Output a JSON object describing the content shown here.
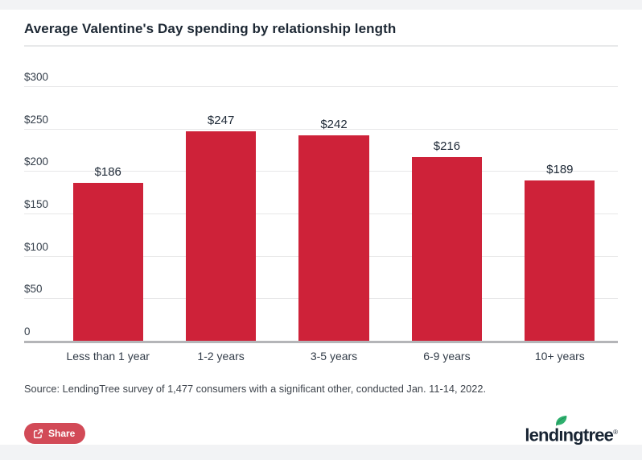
{
  "page": {
    "title": "Average Valentine's Day spending by relationship length"
  },
  "chart_data": {
    "type": "bar",
    "title": "Average Valentine's Day spending by relationship length",
    "categories": [
      "Less than 1 year",
      "1-2 years",
      "3-5 years",
      "6-9 years",
      "10+ years"
    ],
    "values": [
      186,
      247,
      242,
      216,
      189
    ],
    "value_labels": [
      "$186",
      "$247",
      "$242",
      "$216",
      "$189"
    ],
    "xlabel": "",
    "ylabel": "",
    "ylim": [
      0,
      300
    ],
    "y_ticks": [
      {
        "value": 300,
        "label": "$300"
      },
      {
        "value": 250,
        "label": "$250"
      },
      {
        "value": 200,
        "label": "$200"
      },
      {
        "value": 150,
        "label": "$150"
      },
      {
        "value": 100,
        "label": "$100"
      },
      {
        "value": 50,
        "label": "$50"
      },
      {
        "value": 0,
        "label": "0"
      }
    ],
    "grid": true,
    "legend": "none",
    "bar_color": "#ce2239"
  },
  "footer": {
    "source": "Source: LendingTree survey of 1,477 consumers with a significant other, conducted Jan. 11-14, 2022.",
    "share": {
      "label": "Share"
    },
    "logo": {
      "pre": "lend",
      "i": "ı",
      "post": "ngtree",
      "registered": "®"
    }
  },
  "colors": {
    "bar": "#ce2239",
    "share_button": "#d24a57",
    "title_text": "#1c2733",
    "axis_text": "#333d49",
    "gridline": "#e7e7e8",
    "axis_line": "#b4b5b8",
    "leaf_green": "#2eb06e",
    "logo_text": "#182433"
  }
}
